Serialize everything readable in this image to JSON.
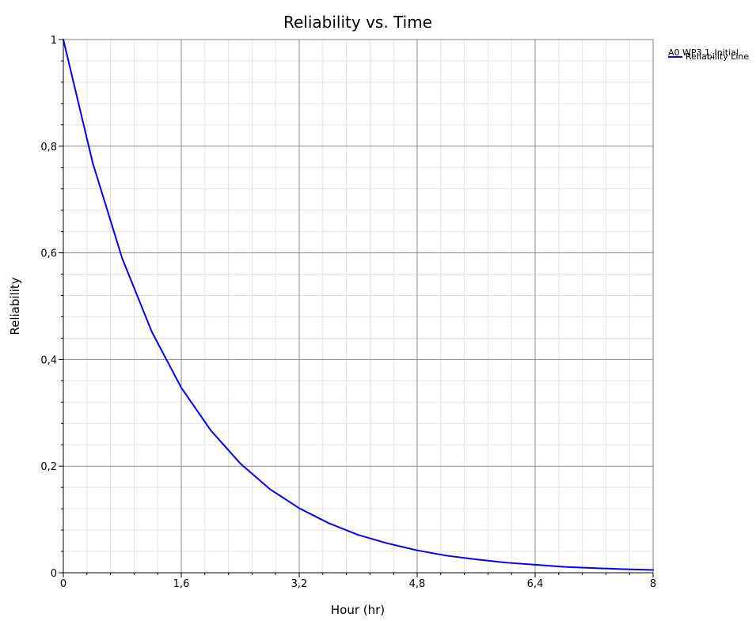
{
  "chart_data": {
    "type": "line",
    "title": "Reliability vs. Time",
    "xlabel": "Hour (hr)",
    "ylabel": "Reliability",
    "xlim": [
      0,
      8
    ],
    "ylim": [
      0,
      1
    ],
    "x_ticks": [
      0,
      1.6,
      3.2,
      4.8,
      6.4,
      8
    ],
    "x_tick_labels": [
      "0",
      "1,6",
      "3,2",
      "4,8",
      "6,4",
      "8"
    ],
    "y_ticks": [
      0,
      0.2,
      0.4,
      0.6,
      0.8,
      1
    ],
    "y_tick_labels": [
      "0",
      "0,2",
      "0,4",
      "0,6",
      "0,8",
      "1"
    ],
    "grid": true,
    "legend": {
      "position": "top-right",
      "title": "A0 WP3.1_Initial",
      "entries": [
        "Reliability Line"
      ]
    },
    "series": [
      {
        "name": "Reliability Line",
        "color": "#0000ff",
        "x": [
          0,
          0.4,
          0.8,
          1.2,
          1.6,
          2.0,
          2.4,
          2.8,
          3.2,
          3.6,
          4.0,
          4.4,
          4.8,
          5.2,
          5.6,
          6.0,
          6.4,
          6.8,
          7.2,
          7.6,
          8.0
        ],
        "y": [
          1.0,
          0.768,
          0.589,
          0.452,
          0.347,
          0.267,
          0.205,
          0.157,
          0.121,
          0.093,
          0.071,
          0.055,
          0.042,
          0.032,
          0.025,
          0.019,
          0.015,
          0.011,
          0.0087,
          0.0067,
          0.0051
        ]
      }
    ]
  }
}
